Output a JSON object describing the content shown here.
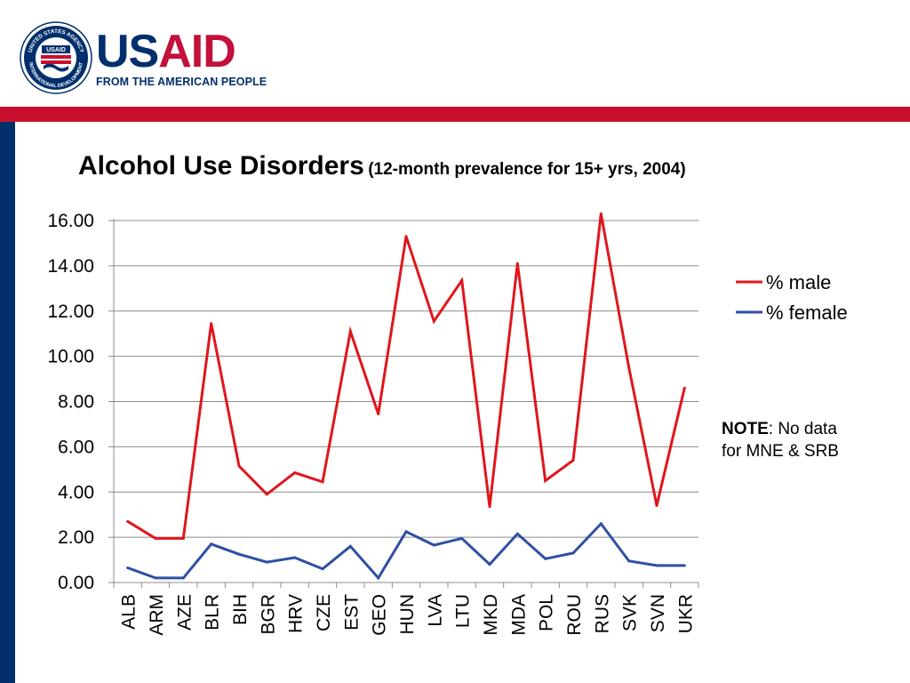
{
  "brand": {
    "seal_top_text": "UNITED STATES AGENCY",
    "seal_bottom_text": "INTERNATIONAL DEVELOPMENT",
    "seal_badge": "USAID",
    "wordmark_part1": "US",
    "wordmark_part2": "AID",
    "tagline": "FROM THE AMERICAN PEOPLE"
  },
  "title": {
    "main": "Alcohol Use Disorders",
    "sub": "(12-month prevalence for 15+ yrs, 2004)"
  },
  "note": {
    "label": "NOTE",
    "text": ": No data",
    "line2": "for MNE & SRB"
  },
  "colors": {
    "male": "#e0161c",
    "female": "#2e4fa3",
    "brand_blue": "#002f6c",
    "brand_red": "#c8102e"
  },
  "chart_data": {
    "type": "line",
    "title": "Alcohol Use Disorders (12-month prevalence for 15+ yrs, 2004)",
    "xlabel": "",
    "ylabel": "",
    "ylim": [
      0,
      16
    ],
    "yticks": [
      "0.00",
      "2.00",
      "4.00",
      "6.00",
      "8.00",
      "10.00",
      "12.00",
      "14.00",
      "16.00"
    ],
    "grid": true,
    "legend_position": "right",
    "categories": [
      "ALB",
      "ARM",
      "AZE",
      "BLR",
      "BIH",
      "BGR",
      "HRV",
      "CZE",
      "EST",
      "GEO",
      "HUN",
      "LVA",
      "LTU",
      "MKD",
      "MDA",
      "POL",
      "ROU",
      "RUS",
      "SVK",
      "SVN",
      "UKR"
    ],
    "series": [
      {
        "name": "% male",
        "values": [
          2.7,
          1.95,
          1.95,
          11.45,
          5.15,
          3.9,
          4.85,
          4.45,
          11.1,
          7.45,
          15.3,
          11.55,
          13.35,
          3.35,
          14.1,
          4.5,
          5.4,
          16.3,
          9.5,
          3.4,
          8.6
        ]
      },
      {
        "name": "% female",
        "values": [
          0.65,
          0.2,
          0.2,
          1.7,
          1.25,
          0.9,
          1.1,
          0.6,
          1.6,
          0.2,
          2.25,
          1.65,
          1.95,
          0.8,
          2.15,
          1.05,
          1.3,
          2.6,
          0.95,
          0.75,
          0.75
        ]
      }
    ]
  }
}
